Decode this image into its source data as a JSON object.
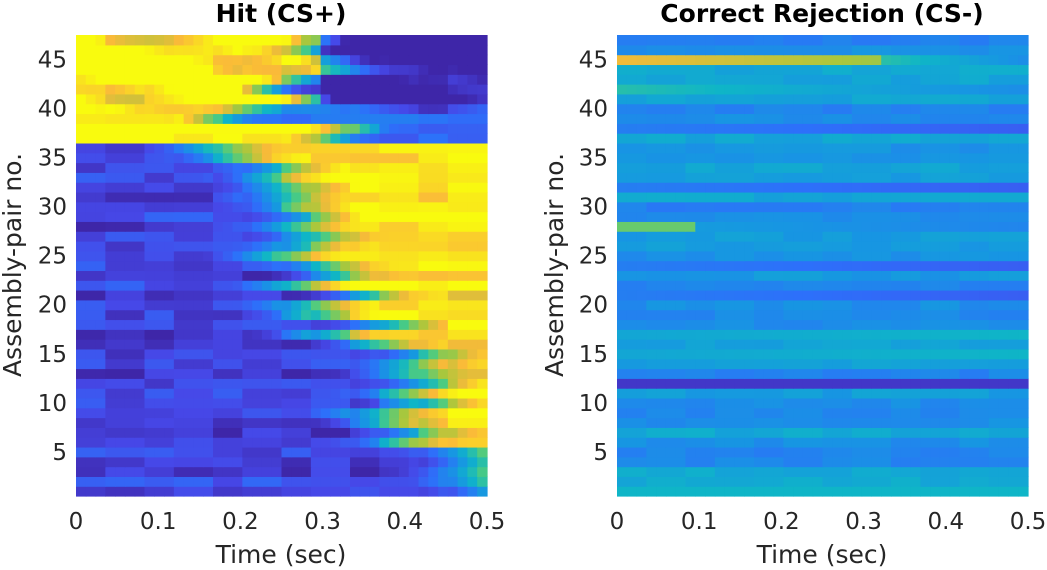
{
  "chart_data": [
    {
      "type": "heatmap",
      "title": "Hit (CS+)",
      "xlabel": "Time (sec)",
      "ylabel": "Assembly-pair no.",
      "xlim": [
        0,
        0.5
      ],
      "ylim": [
        0.5,
        47.5
      ],
      "xticks": [
        "0",
        "0.1",
        "0.2",
        "0.3",
        "0.4",
        "0.5"
      ],
      "xtick_values": [
        0,
        0.1,
        0.2,
        0.3,
        0.4,
        0.5
      ],
      "yticks": [
        "5",
        "10",
        "15",
        "20",
        "25",
        "30",
        "35",
        "40",
        "45"
      ],
      "ytick_values": [
        5,
        10,
        15,
        20,
        25,
        30,
        35,
        40,
        45
      ],
      "rows": 47,
      "colormap": "parula",
      "color_range": [
        0,
        1
      ],
      "pattern": "hit"
    },
    {
      "type": "heatmap",
      "title": "Correct Rejection (CS-)",
      "xlabel": "Time (sec)",
      "ylabel": "Assembly-pair no.",
      "xlim": [
        0,
        0.5
      ],
      "ylim": [
        0.5,
        47.5
      ],
      "xticks": [
        "0",
        "0.1",
        "0.2",
        "0.3",
        "0.4",
        "0.5"
      ],
      "xtick_values": [
        0,
        0.1,
        0.2,
        0.3,
        0.4,
        0.5
      ],
      "yticks": [
        "5",
        "10",
        "15",
        "20",
        "25",
        "30",
        "35",
        "40",
        "45"
      ],
      "ytick_values": [
        5,
        10,
        15,
        20,
        25,
        30,
        35,
        40,
        45
      ],
      "rows": 47,
      "colormap": "parula",
      "color_range": [
        0,
        1
      ],
      "pattern": "cr"
    }
  ]
}
